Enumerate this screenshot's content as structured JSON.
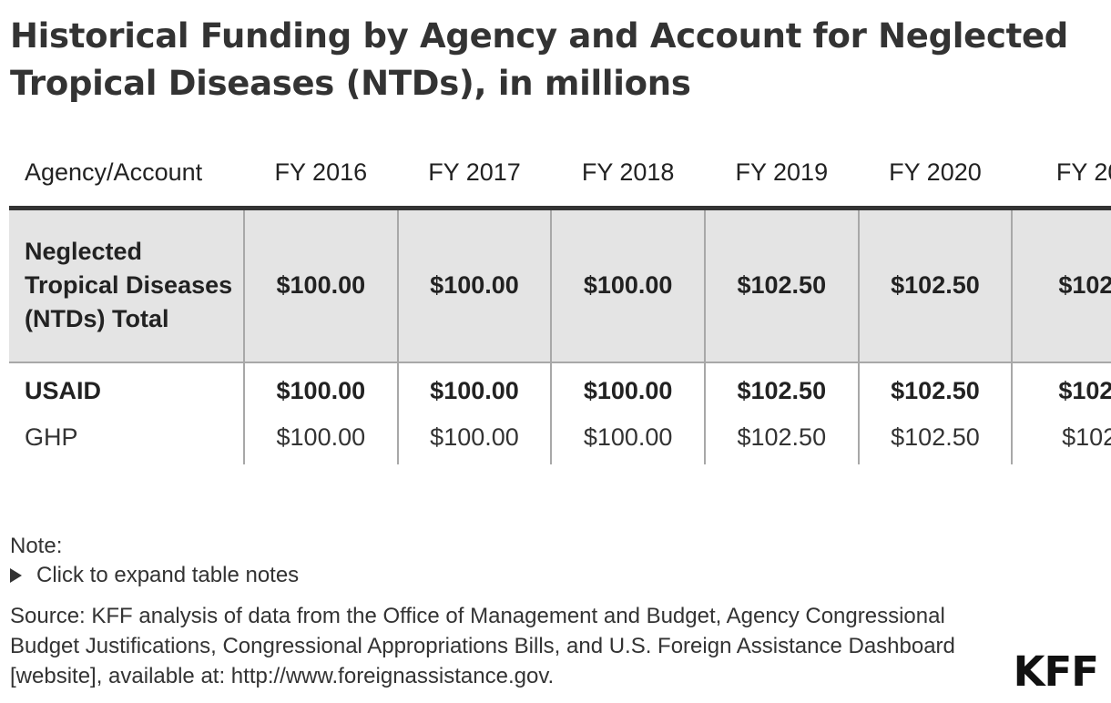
{
  "title": "Historical Funding by Agency and Account for Neglected Tropical Diseases (NTDs), in millions",
  "chart_data": {
    "type": "table",
    "columns": [
      "Agency/Account",
      "FY 2016",
      "FY 2017",
      "FY 2018",
      "FY 2019",
      "FY 2020",
      "FY 20"
    ],
    "rows": [
      {
        "label": "Neglected Tropical Diseases (NTDs) Total",
        "values": [
          "$100.00",
          "$100.00",
          "$100.00",
          "$102.50",
          "$102.50",
          "$102."
        ]
      },
      {
        "label": "USAID",
        "values": [
          "$100.00",
          "$100.00",
          "$100.00",
          "$102.50",
          "$102.50",
          "$102."
        ]
      },
      {
        "label": "GHP",
        "values": [
          "$100.00",
          "$100.00",
          "$100.00",
          "$102.50",
          "$102.50",
          "$102"
        ]
      }
    ]
  },
  "notes": {
    "label": "Note:",
    "expand_label": "Click to expand table notes",
    "source": "Source: KFF analysis of data from the Office of Management and Budget, Agency Congressional Budget Justifications, Congressional Appropriations Bills, and U.S. Foreign Assistance Dashboard [website], available at: http://www.foreignassistance.gov."
  },
  "logo": "KFF",
  "icons": {
    "expand": "triangle-right-icon"
  }
}
